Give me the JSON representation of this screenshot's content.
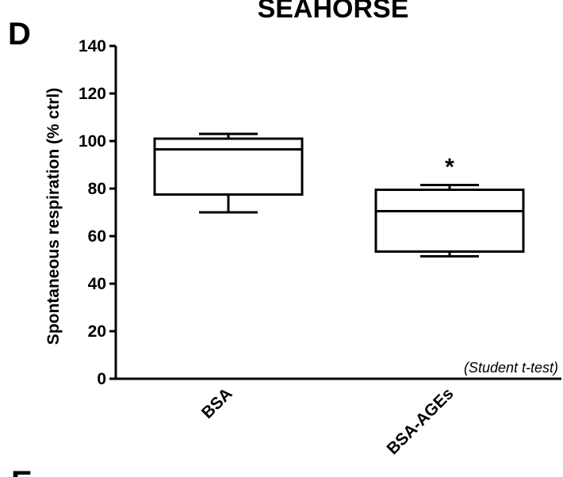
{
  "chart_data": {
    "type": "box",
    "title": "SEAHORSE",
    "panel_label": "D",
    "ylabel": "Spontaneous respiration (% ctrl)",
    "xlabel": "",
    "ylim": [
      0,
      140
    ],
    "yticks": [
      0,
      20,
      40,
      60,
      80,
      100,
      120,
      140
    ],
    "categories": [
      "BSA",
      "BSA-AGEs"
    ],
    "boxes": [
      {
        "name": "BSA",
        "min": 70,
        "q1": 77.5,
        "median": 96.5,
        "q3": 101,
        "max": 103
      },
      {
        "name": "BSA-AGEs",
        "min": 51.5,
        "q1": 53.5,
        "median": 70.5,
        "q3": 79.5,
        "max": 81.5
      }
    ],
    "significance": [
      {
        "category": "BSA-AGEs",
        "symbol": "*"
      }
    ],
    "annotation": "(Student t-test)",
    "grid": false,
    "legend": false
  },
  "next_panel_label": "E"
}
